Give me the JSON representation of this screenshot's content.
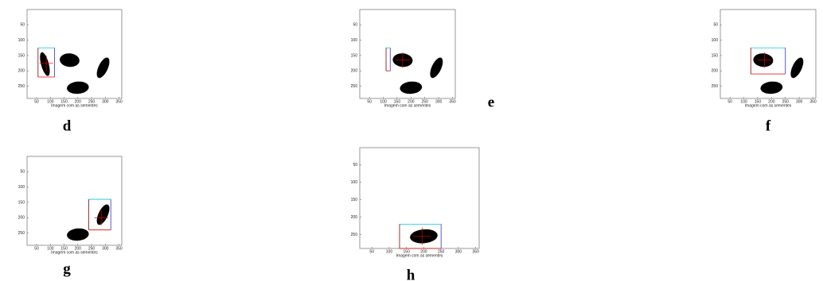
{
  "panels": [
    {
      "letter": "d",
      "xlabel": "Imagem com as sementes",
      "xticks": [
        "50",
        "100",
        "150",
        "200",
        "250",
        "300",
        "350"
      ],
      "yticks": [
        "50",
        "100",
        "150",
        "200",
        "250"
      ]
    },
    {
      "letter": "e",
      "xlabel": "Imagem com as sementes",
      "xticks": [
        "50",
        "100",
        "150",
        "200",
        "250",
        "300",
        "350"
      ],
      "yticks": [
        "50",
        "100",
        "150",
        "200",
        "250"
      ]
    },
    {
      "letter": "f",
      "xlabel": "Imagem com as sementes",
      "xticks": [
        "50",
        "100",
        "150",
        "200",
        "250",
        "300",
        "350"
      ],
      "yticks": [
        "50",
        "100",
        "150",
        "200",
        "250"
      ]
    },
    {
      "letter": "g",
      "xlabel": "Imagem com as sementes",
      "xticks": [
        "50",
        "100",
        "150",
        "200",
        "250",
        "300",
        "350"
      ],
      "yticks": [
        "50",
        "100",
        "150",
        "200",
        "250"
      ]
    },
    {
      "letter": "h",
      "xlabel": "Imagem com as sementes",
      "xticks": [
        "50",
        "100",
        "150",
        "200",
        "250",
        "300",
        "350"
      ],
      "yticks": [
        "50",
        "100",
        "150",
        "200",
        "250"
      ]
    }
  ]
}
